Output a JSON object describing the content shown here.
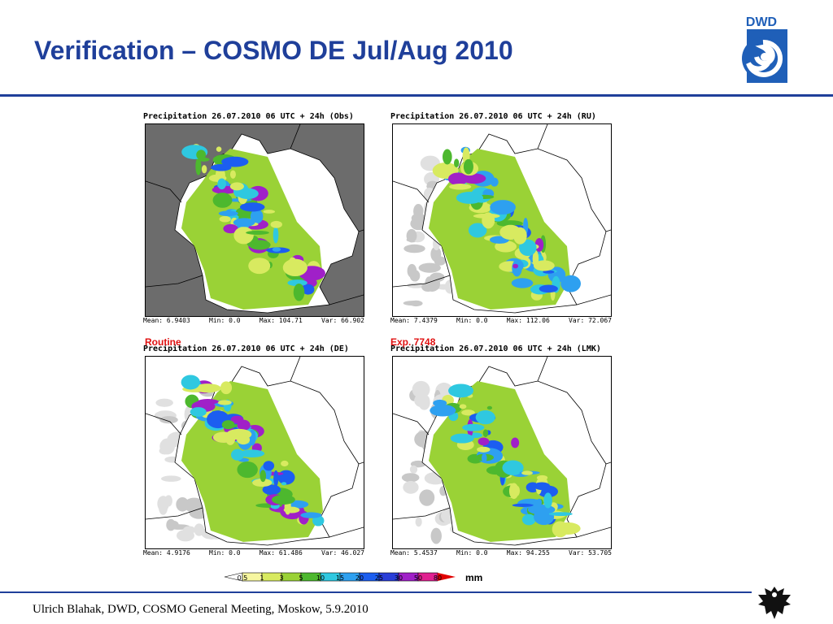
{
  "slide": {
    "title": "Verification – COSMO DE Jul/Aug 2010",
    "footer": "Ulrich Blahak, DWD, COSMO General Meeting, Moskow, 5.9.2010",
    "logo_text": "DWD"
  },
  "panels": [
    {
      "title": "Precipitation 26.07.2010 06 UTC + 24h (Obs)",
      "label": "",
      "mean": "Mean: 6.9403",
      "min": "Min: 0.0",
      "max": "Max: 104.71",
      "var": "Var: 66.902",
      "background": "#6c6c6c"
    },
    {
      "title": "Precipitation 26.07.2010 06 UTC + 24h (RU)",
      "label": "",
      "mean": "Mean: 7.4379",
      "min": "Min: 0.0",
      "max": "Max: 112.06",
      "var": "Var: 72.067",
      "background": "#ffffff"
    },
    {
      "title": "Precipitation 26.07.2010 06 UTC + 24h (DE)",
      "label": "Routine",
      "mean": "Mean: 4.9176",
      "min": "Min: 0.0",
      "max": "Max: 61.486",
      "var": "Var: 46.027",
      "background": "#ffffff"
    },
    {
      "title": "Precipitation 26.07.2010 06 UTC + 24h (LMK)",
      "label": "Exp. 7748",
      "mean": "Mean: 5.4537",
      "min": "Min: 0.0",
      "max": "Max: 94.255",
      "var": "Var: 53.705",
      "background": "#ffffff"
    }
  ],
  "legend": {
    "unit": "mm",
    "thresholds": [
      "0.5",
      "1",
      "3",
      "5",
      "10",
      "15",
      "20",
      "25",
      "30",
      "50",
      "80"
    ],
    "colors": [
      "#ffffff",
      "#f6f6a0",
      "#d8ea60",
      "#9ad236",
      "#4db82e",
      "#2fc8e0",
      "#2ea0f0",
      "#1c5ef0",
      "#2a3ed8",
      "#a020c8",
      "#e02090",
      "#e00000"
    ]
  },
  "colors": {
    "title": "#1f3f9a",
    "label": "#e01010"
  }
}
